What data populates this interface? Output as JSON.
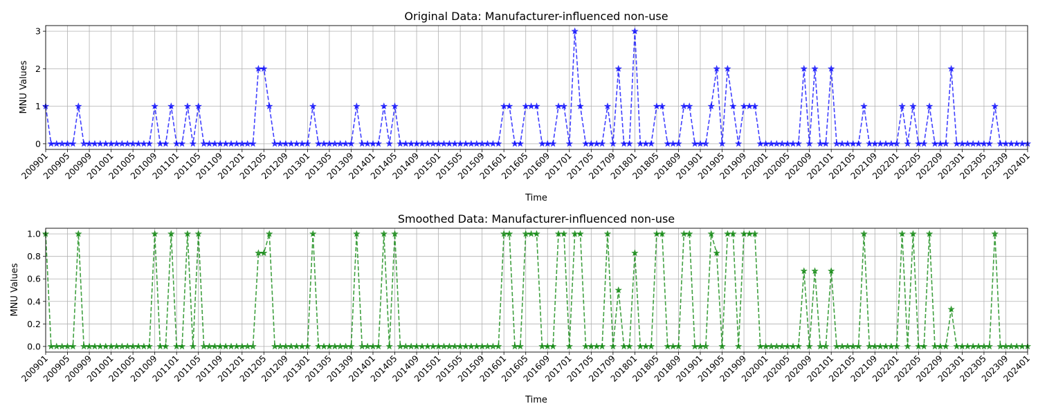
{
  "chart_data": [
    {
      "type": "line",
      "title": "Original Data: Manufacturer-influenced non-use",
      "xlabel": "Time",
      "ylabel": "MNU Values",
      "ylim": [
        -0.15,
        3.15
      ],
      "yticks": [
        "0",
        "1",
        "2",
        "3"
      ],
      "xticks": [
        "200901",
        "200905",
        "200909",
        "201001",
        "201005",
        "201009",
        "201101",
        "201105",
        "201109",
        "201201",
        "201205",
        "201209",
        "201301",
        "201305",
        "201309",
        "201401",
        "201405",
        "201409",
        "201501",
        "201505",
        "201509",
        "201601",
        "201605",
        "201609",
        "201701",
        "201705",
        "201709",
        "201801",
        "201805",
        "201809",
        "201901",
        "201905",
        "201909",
        "202001",
        "202005",
        "202009",
        "202101",
        "202105",
        "202109",
        "202201",
        "202205",
        "202209",
        "202301",
        "202305",
        "202309",
        "202401"
      ],
      "grid": true,
      "series": [
        {
          "color": "#0000ff",
          "marker": "star",
          "linestyle": "dashed",
          "values": [
            1,
            0,
            0,
            0,
            0,
            0,
            1,
            0,
            0,
            0,
            0,
            0,
            0,
            0,
            0,
            0,
            0,
            0,
            0,
            0,
            1,
            0,
            0,
            1,
            0,
            0,
            1,
            0,
            1,
            0,
            0,
            0,
            0,
            0,
            0,
            0,
            0,
            0,
            0,
            2,
            2,
            1,
            0,
            0,
            0,
            0,
            0,
            0,
            0,
            1,
            0,
            0,
            0,
            0,
            0,
            0,
            0,
            1,
            0,
            0,
            0,
            0,
            1,
            0,
            1,
            0,
            0,
            0,
            0,
            0,
            0,
            0,
            0,
            0,
            0,
            0,
            0,
            0,
            0,
            0,
            0,
            0,
            0,
            0,
            1,
            1,
            0,
            0,
            1,
            1,
            1,
            0,
            0,
            0,
            1,
            1,
            0,
            3,
            1,
            0,
            0,
            0,
            0,
            1,
            0,
            2,
            0,
            0,
            3,
            0,
            0,
            0,
            1,
            1,
            0,
            0,
            0,
            1,
            1,
            0,
            0,
            0,
            1,
            2,
            0,
            2,
            1,
            0,
            1,
            1,
            1,
            0,
            0,
            0,
            0,
            0,
            0,
            0,
            0,
            2,
            0,
            2,
            0,
            0,
            2,
            0,
            0,
            0,
            0,
            0,
            1,
            0,
            0,
            0,
            0,
            0,
            0,
            1,
            0,
            1,
            0,
            0,
            1,
            0,
            0,
            0,
            2,
            0,
            0,
            0,
            0,
            0,
            0,
            0,
            1,
            0,
            0,
            0,
            0,
            0,
            0
          ]
        }
      ]
    },
    {
      "type": "line",
      "title": "Smoothed Data: Manufacturer-influenced non-use",
      "xlabel": "Time",
      "ylabel": "MNU Values",
      "ylim": [
        -0.05,
        1.05
      ],
      "yticks": [
        "0.0",
        "0.2",
        "0.4",
        "0.6",
        "0.8",
        "1.0"
      ],
      "xticks": [
        "200901",
        "200905",
        "200909",
        "201001",
        "201005",
        "201009",
        "201101",
        "201105",
        "201109",
        "201201",
        "201205",
        "201209",
        "201301",
        "201305",
        "201309",
        "201401",
        "201405",
        "201409",
        "201501",
        "201505",
        "201509",
        "201601",
        "201605",
        "201609",
        "201701",
        "201705",
        "201709",
        "201801",
        "201805",
        "201809",
        "201901",
        "201905",
        "201909",
        "202001",
        "202005",
        "202009",
        "202101",
        "202105",
        "202109",
        "202201",
        "202205",
        "202209",
        "202301",
        "202305",
        "202309",
        "202401"
      ],
      "grid": true,
      "series": [
        {
          "color": "#008000",
          "marker": "star",
          "linestyle": "dashed",
          "values": [
            1,
            0,
            0,
            0,
            0,
            0,
            1,
            0,
            0,
            0,
            0,
            0,
            0,
            0,
            0,
            0,
            0,
            0,
            0,
            0,
            1,
            0,
            0,
            1,
            0,
            0,
            1,
            0,
            1,
            0,
            0,
            0,
            0,
            0,
            0,
            0,
            0,
            0,
            0,
            0.83,
            0.83,
            1,
            0,
            0,
            0,
            0,
            0,
            0,
            0,
            1,
            0,
            0,
            0,
            0,
            0,
            0,
            0,
            1,
            0,
            0,
            0,
            0,
            1,
            0,
            1,
            0,
            0,
            0,
            0,
            0,
            0,
            0,
            0,
            0,
            0,
            0,
            0,
            0,
            0,
            0,
            0,
            0,
            0,
            0,
            1,
            1,
            0,
            0,
            1,
            1,
            1,
            0,
            0,
            0,
            1,
            1,
            0,
            1,
            1,
            0,
            0,
            0,
            0,
            1,
            0,
            0.5,
            0,
            0,
            0.83,
            0,
            0,
            0,
            1,
            1,
            0,
            0,
            0,
            1,
            1,
            0,
            0,
            0,
            1,
            0.83,
            0,
            1,
            1,
            0,
            1,
            1,
            1,
            0,
            0,
            0,
            0,
            0,
            0,
            0,
            0,
            0.67,
            0,
            0.67,
            0,
            0,
            0.67,
            0,
            0,
            0,
            0,
            0,
            1,
            0,
            0,
            0,
            0,
            0,
            0,
            1,
            0,
            1,
            0,
            0,
            1,
            0,
            0,
            0,
            0.33,
            0,
            0,
            0,
            0,
            0,
            0,
            0,
            1,
            0,
            0,
            0,
            0,
            0,
            0
          ]
        }
      ]
    }
  ]
}
